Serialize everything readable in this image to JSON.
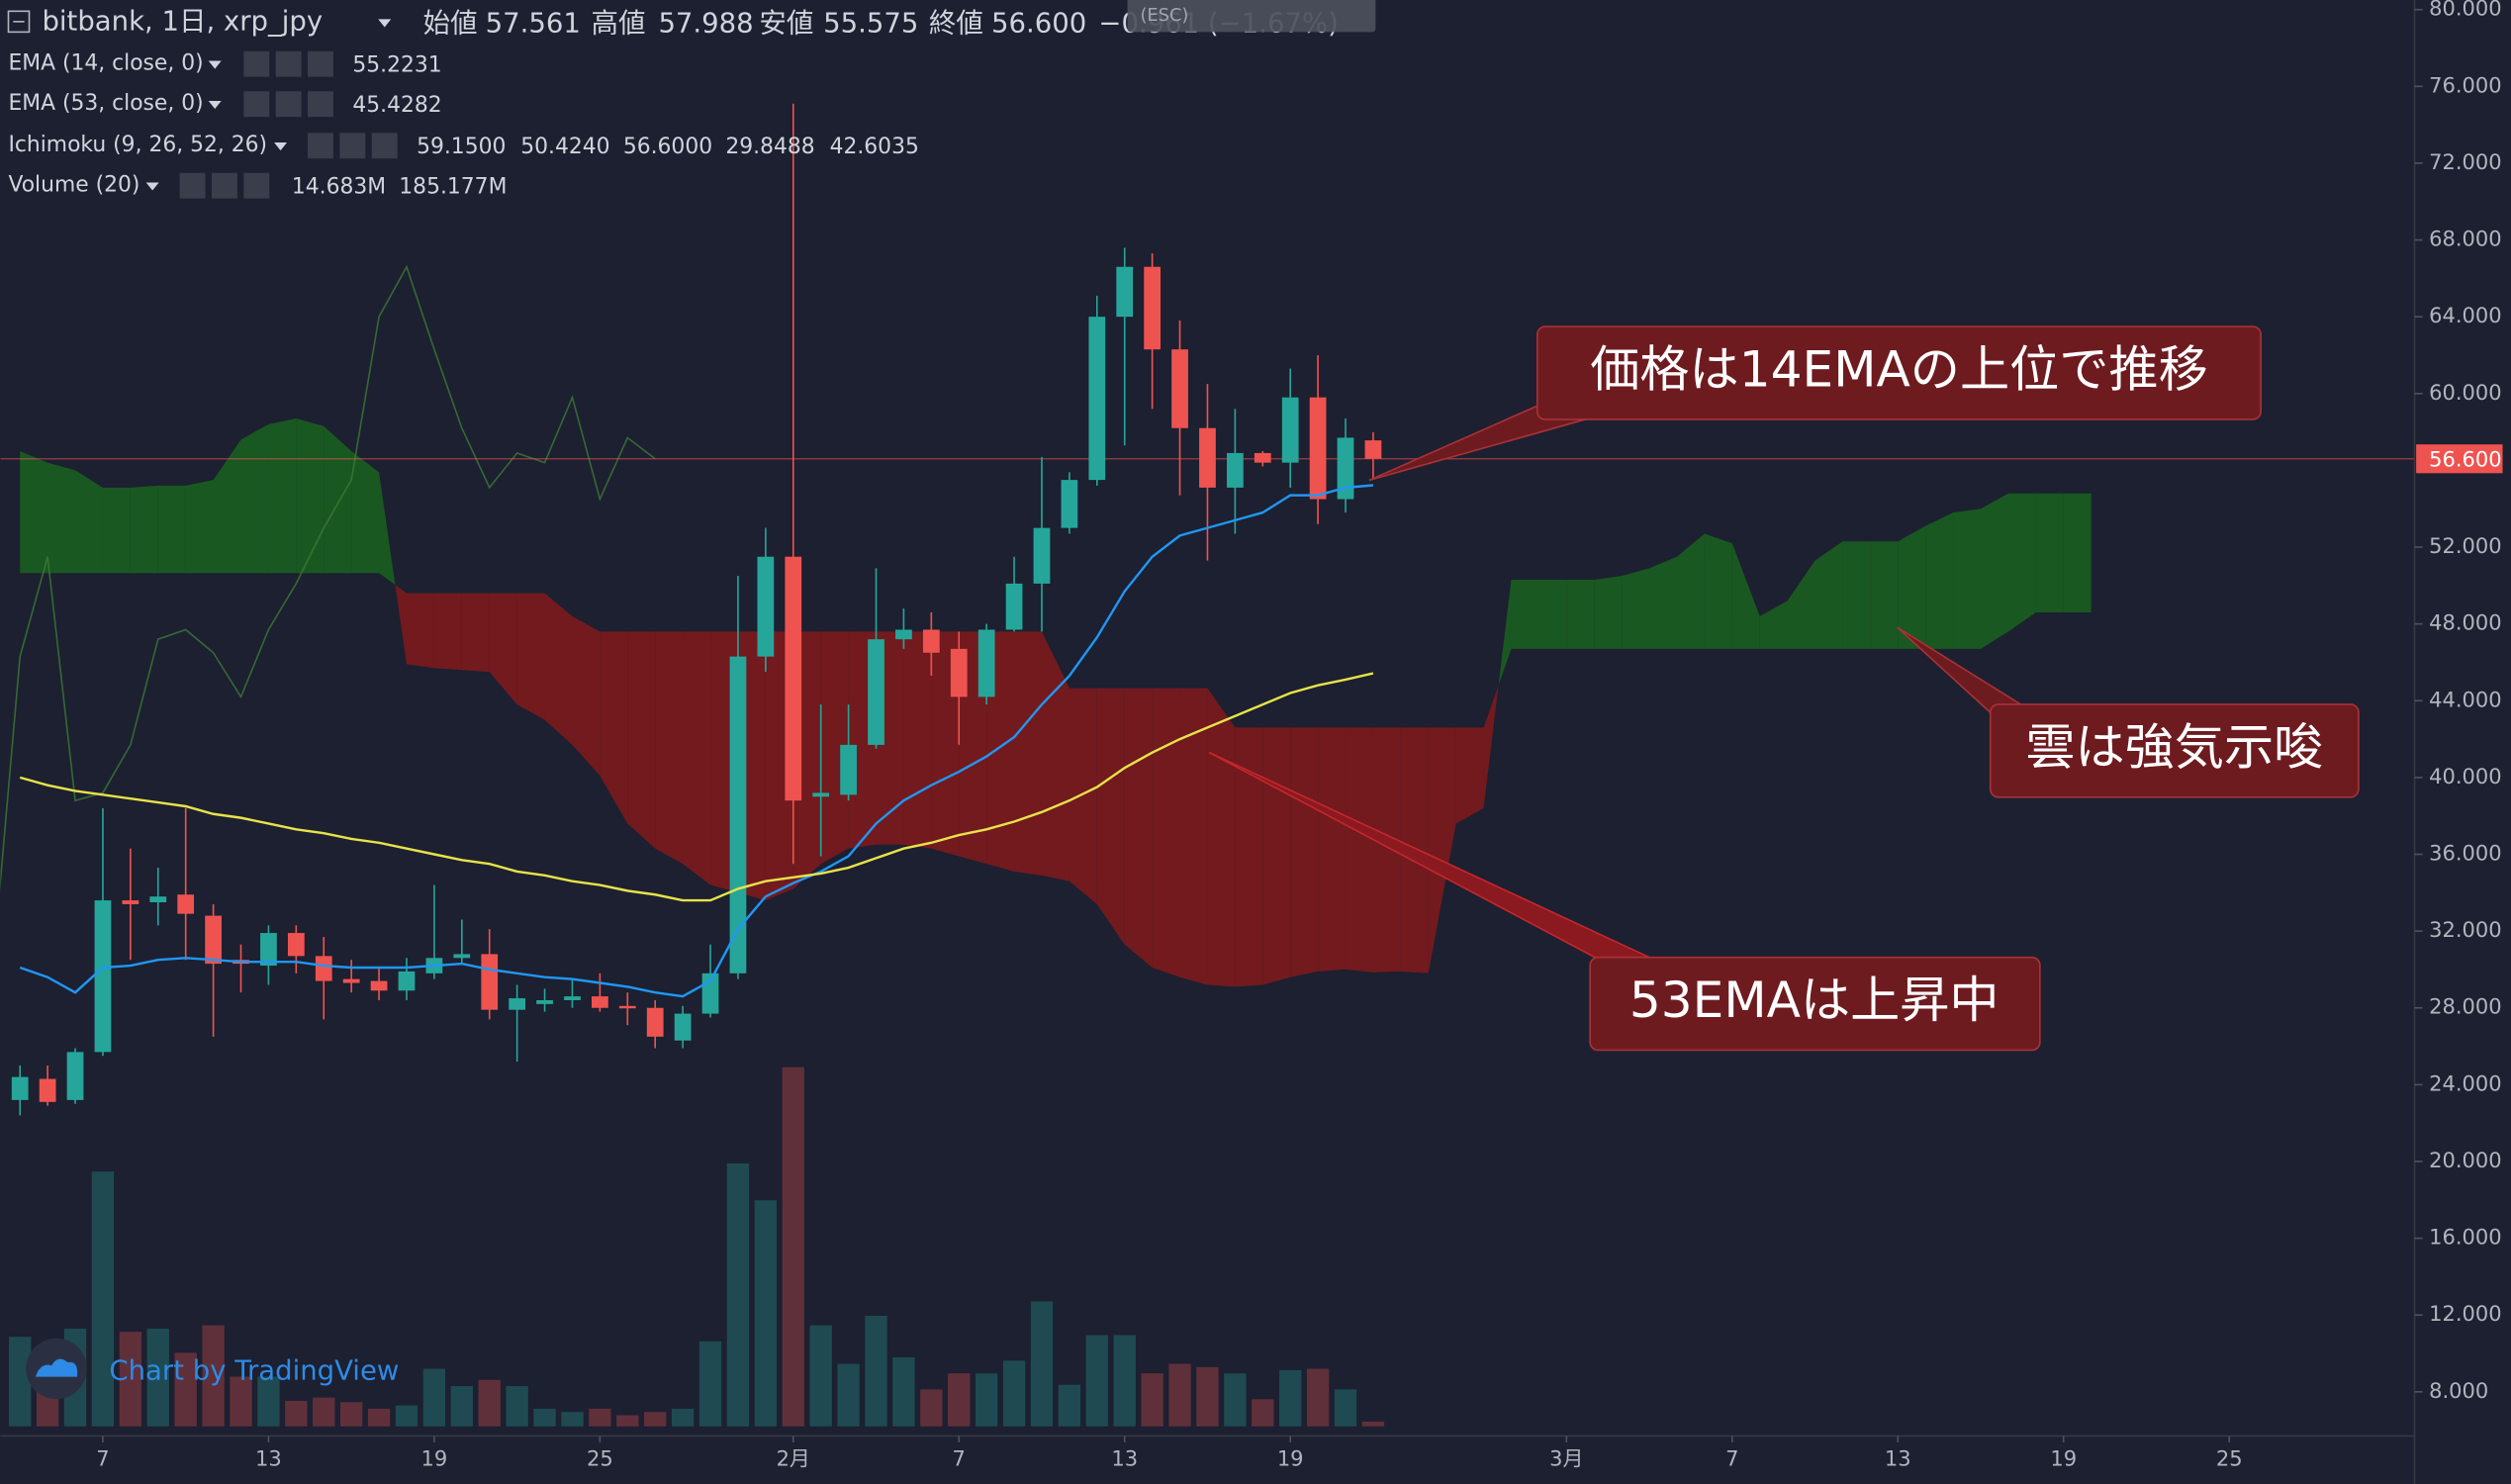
{
  "header": {
    "symbol": "bitbank, 1日, xrp_jpy",
    "open_label": "始値",
    "open": "57.561",
    "high_label": "高値",
    "high": "57.988",
    "low_label": "安値",
    "low": "55.575",
    "close_label": "終値",
    "close": "56.600",
    "change": "−0.961 (−1.67%)",
    "esc": "(ESC)"
  },
  "watermark": "Chart by TradingView",
  "chart_data": {
    "type": "candlestick",
    "up_color": "#26a69a",
    "down_color": "#ef5350",
    "x": [
      3,
      4,
      5,
      6,
      7,
      8,
      9,
      10,
      11,
      12,
      13,
      14,
      15,
      16,
      17,
      18,
      19,
      20,
      21,
      22,
      23,
      24,
      25,
      26,
      27,
      28,
      29,
      30,
      31,
      32,
      33,
      34,
      35,
      36,
      37,
      38,
      39,
      40,
      41,
      42,
      43,
      44,
      45,
      46,
      47,
      48,
      49,
      50,
      51,
      52
    ],
    "open": [
      23.2,
      24.3,
      23.2,
      25.7,
      33.6,
      33.5,
      33.9,
      32.8,
      30.5,
      30.2,
      31.9,
      30.7,
      29.5,
      29.4,
      28.9,
      29.8,
      30.6,
      30.8,
      27.9,
      28.2,
      28.4,
      28.6,
      28.1,
      28.0,
      26.3,
      27.7,
      29.8,
      46.3,
      51.5,
      39.0,
      39.1,
      41.7,
      47.2,
      47.7,
      46.7,
      44.2,
      47.7,
      50.1,
      53.0,
      55.5,
      64.0,
      66.6,
      62.3,
      58.2,
      55.1,
      56.9,
      56.4,
      59.8,
      54.5,
      57.561
    ],
    "high": [
      25.0,
      25.0,
      25.9,
      38.4,
      36.3,
      35.3,
      38.4,
      33.4,
      31.3,
      32.3,
      32.3,
      31.7,
      30.5,
      30.1,
      30.6,
      34.4,
      32.6,
      32.1,
      29.2,
      29.0,
      29.5,
      29.8,
      28.8,
      28.4,
      28.1,
      31.3,
      50.5,
      53.0,
      75.1,
      43.8,
      43.8,
      50.9,
      48.8,
      48.6,
      47.6,
      48.0,
      51.5,
      56.7,
      55.9,
      65.1,
      67.6,
      67.3,
      63.8,
      60.5,
      59.2,
      57.0,
      61.3,
      62.0,
      58.7,
      57.988
    ],
    "low": [
      22.4,
      22.9,
      23.0,
      25.5,
      30.5,
      32.3,
      30.5,
      26.5,
      28.8,
      29.2,
      29.8,
      27.4,
      28.8,
      28.4,
      28.4,
      29.5,
      30.3,
      27.4,
      25.2,
      27.8,
      28.0,
      27.8,
      27.1,
      25.9,
      25.9,
      27.5,
      29.5,
      45.5,
      35.5,
      35.9,
      38.8,
      41.5,
      46.7,
      45.3,
      41.7,
      43.8,
      47.6,
      47.6,
      52.7,
      55.2,
      57.3,
      59.2,
      54.7,
      51.3,
      52.7,
      56.2,
      55.1,
      53.2,
      53.8,
      55.575
    ],
    "close": [
      24.4,
      23.1,
      25.7,
      33.6,
      33.4,
      33.8,
      32.9,
      30.3,
      30.3,
      31.9,
      30.7,
      29.4,
      29.3,
      28.9,
      29.9,
      30.6,
      30.8,
      27.9,
      28.5,
      28.4,
      28.6,
      28.0,
      28.0,
      26.5,
      27.7,
      29.8,
      46.3,
      51.5,
      38.8,
      39.2,
      41.7,
      47.2,
      47.7,
      46.5,
      44.2,
      47.7,
      50.1,
      53.0,
      55.5,
      64.0,
      66.6,
      62.3,
      58.2,
      55.1,
      56.9,
      56.4,
      59.8,
      54.5,
      57.7,
      56.6
    ],
    "price_label": "56.600",
    "series": [
      {
        "name": "EMA (14, close, 0)",
        "color": "#2196f3",
        "value_label": "55.2231",
        "values": [
          30.1,
          29.6,
          28.8,
          30.1,
          30.2,
          30.5,
          30.6,
          30.5,
          30.4,
          30.4,
          30.4,
          30.2,
          30.1,
          30.1,
          30.1,
          30.2,
          30.3,
          30.0,
          29.8,
          29.6,
          29.5,
          29.3,
          29.1,
          28.8,
          28.6,
          29.4,
          32.1,
          33.8,
          34.5,
          35.1,
          35.9,
          37.6,
          38.8,
          39.6,
          40.3,
          41.1,
          42.1,
          43.8,
          45.3,
          47.3,
          49.7,
          51.5,
          52.6,
          53.0,
          53.4,
          53.8,
          54.7,
          54.7,
          55.1,
          55.2231
        ]
      },
      {
        "name": "EMA (53, close, 0)",
        "color": "#e8e24a",
        "value_label": "45.4282",
        "values": [
          40.0,
          39.6,
          39.3,
          39.1,
          38.9,
          38.7,
          38.5,
          38.1,
          37.9,
          37.6,
          37.3,
          37.1,
          36.8,
          36.6,
          36.3,
          36.0,
          35.7,
          35.5,
          35.1,
          34.9,
          34.6,
          34.4,
          34.1,
          33.9,
          33.6,
          33.6,
          34.2,
          34.6,
          34.8,
          35.0,
          35.3,
          35.8,
          36.3,
          36.6,
          37.0,
          37.3,
          37.7,
          38.2,
          38.8,
          39.5,
          40.5,
          41.3,
          42.0,
          42.6,
          43.2,
          43.8,
          44.4,
          44.8,
          45.1,
          45.4282
        ]
      }
    ],
    "ichimoku": {
      "name": "Ichimoku (9, 26, 52, 26)",
      "value_labels": [
        "59.1500",
        "50.4240",
        "56.6000",
        "29.8488",
        "42.6035"
      ],
      "label_colors": [
        "#2196f3",
        "#a52a2a",
        "#4caf50",
        "#2e7d32",
        "#e53935"
      ],
      "displacement": 26,
      "lagging_color": "#3d7a36",
      "bull_color": "#1b5e20",
      "bear_color": "#7c1a1d",
      "cloud_x": [
        3,
        4,
        5,
        6,
        7,
        8,
        9,
        10,
        11,
        12,
        13,
        14,
        15,
        16,
        17,
        18,
        19,
        20,
        21,
        22,
        23,
        24,
        25,
        26,
        27,
        28,
        29,
        30,
        31,
        32,
        33,
        34,
        35,
        36,
        37,
        38,
        39,
        40,
        41,
        42,
        43,
        44,
        45,
        46,
        47,
        48,
        49,
        50,
        51,
        52,
        53,
        54,
        55,
        56,
        57,
        58,
        59,
        60,
        61,
        62,
        63,
        64,
        65,
        66,
        67,
        68,
        69,
        70,
        71,
        72,
        73,
        74,
        75,
        76,
        77,
        78
      ],
      "span_a": [
        57.0,
        56.4,
        56.0,
        55.1,
        55.1,
        55.2,
        55.2,
        55.5,
        57.6,
        58.4,
        58.7,
        58.3,
        57.0,
        55.9,
        45.9,
        45.7,
        45.6,
        45.5,
        43.8,
        43.0,
        41.7,
        40.1,
        37.6,
        36.3,
        35.5,
        34.4,
        34.0,
        33.6,
        34.2,
        35.5,
        36.3,
        36.5,
        36.5,
        36.3,
        35.9,
        35.5,
        35.1,
        34.9,
        34.6,
        33.4,
        31.3,
        30.1,
        29.6,
        29.2,
        29.1,
        29.2,
        29.6,
        29.9,
        30.0,
        29.8488,
        29.9,
        29.8,
        37.6,
        38.4,
        50.3,
        50.3,
        50.3,
        50.3,
        50.5,
        50.9,
        51.5,
        52.7,
        52.2,
        48.4,
        49.2,
        51.3,
        52.3,
        52.3,
        52.3,
        53.1,
        53.8,
        54.0,
        54.8,
        54.8,
        54.8,
        54.8
      ],
      "span_b": [
        50.65,
        50.65,
        50.65,
        50.65,
        50.65,
        50.65,
        50.65,
        50.65,
        50.65,
        50.65,
        50.65,
        50.65,
        50.65,
        50.65,
        49.6,
        49.6,
        49.6,
        49.6,
        49.6,
        49.6,
        48.4,
        47.6,
        47.6,
        47.6,
        47.6,
        47.6,
        47.6,
        47.6,
        47.6,
        47.6,
        47.6,
        47.6,
        47.6,
        47.6,
        47.6,
        47.6,
        47.6,
        47.6,
        44.65,
        44.65,
        44.65,
        44.65,
        44.65,
        44.65,
        42.6,
        42.6,
        42.6,
        42.6,
        42.6,
        42.6035,
        42.6,
        42.6,
        42.6,
        42.6,
        46.7,
        46.7,
        46.7,
        46.7,
        46.7,
        46.7,
        46.7,
        46.7,
        46.7,
        46.7,
        46.7,
        46.7,
        46.7,
        46.7,
        46.7,
        46.7,
        46.7,
        46.7,
        47.6,
        48.6,
        48.6,
        48.6
      ]
    },
    "volume": {
      "name": "Volume (20)",
      "value_label": "14.683M",
      "ma_label": "185.177M",
      "label_colors": [
        "#ef5350",
        "#26a69a"
      ],
      "ylim": [
        0,
        1150
      ],
      "values": [
        274,
        176,
        299,
        779,
        289,
        299,
        225,
        309,
        152,
        152,
        78,
        88,
        74,
        54,
        64,
        176,
        123,
        142,
        123,
        54,
        44,
        54,
        34,
        44,
        54,
        260,
        804,
        691,
        1098,
        309,
        191,
        338,
        211,
        113,
        162,
        162,
        201,
        382,
        127,
        279,
        279,
        162,
        191,
        181,
        162,
        83,
        172,
        176,
        113,
        14.683
      ]
    },
    "xlim": [
      2.29,
      89.71
    ],
    "xticks": [
      {
        "value": 6,
        "label": "7"
      },
      {
        "value": 12,
        "label": "13"
      },
      {
        "value": 18,
        "label": "19"
      },
      {
        "value": 24,
        "label": "25"
      },
      {
        "value": 31,
        "label": "2月"
      },
      {
        "value": 37,
        "label": "7"
      },
      {
        "value": 43,
        "label": "13"
      },
      {
        "value": 49,
        "label": "19"
      },
      {
        "value": 59,
        "label": "3月"
      },
      {
        "value": 65,
        "label": "7"
      },
      {
        "value": 71,
        "label": "13"
      },
      {
        "value": 77,
        "label": "19"
      },
      {
        "value": 83,
        "label": "25"
      }
    ],
    "ylim": [
      5.7,
      80.5
    ],
    "yticks": [
      {
        "value": 8,
        "label": "8.000"
      },
      {
        "value": 12,
        "label": "12.000"
      },
      {
        "value": 16,
        "label": "16.000"
      },
      {
        "value": 20,
        "label": "20.000"
      },
      {
        "value": 24,
        "label": "24.000"
      },
      {
        "value": 28,
        "label": "28.000"
      },
      {
        "value": 32,
        "label": "32.000"
      },
      {
        "value": 36,
        "label": "36.000"
      },
      {
        "value": 40,
        "label": "40.000"
      },
      {
        "value": 44,
        "label": "44.000"
      },
      {
        "value": 48,
        "label": "48.000"
      },
      {
        "value": 52,
        "label": "52.000"
      },
      {
        "value": 60,
        "label": "60.000"
      },
      {
        "value": 64,
        "label": "64.000"
      },
      {
        "value": 68,
        "label": "68.000"
      },
      {
        "value": 72,
        "label": "72.000"
      },
      {
        "value": 76,
        "label": "76.000"
      },
      {
        "value": 80,
        "label": "80.000"
      }
    ],
    "annotations": [
      "価格は14EMAの上位で推移",
      "雲は強気示唆",
      "53EMAは上昇中"
    ]
  }
}
